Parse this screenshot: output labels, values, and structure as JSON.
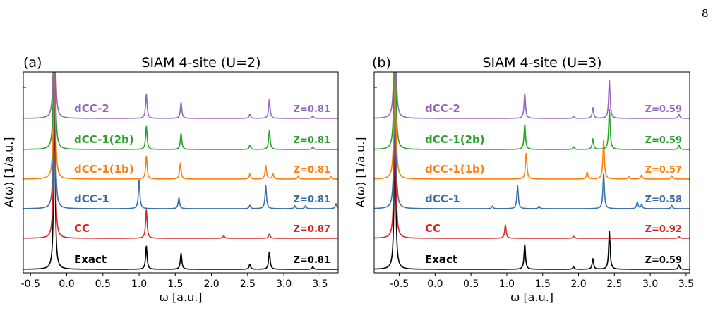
{
  "page_number": "8",
  "x_label": "ω [a.u.]",
  "y_label": "A(ω) [1/a.u.]",
  "colors": {
    "Exact": "#000000",
    "CC": "#d62728",
    "dCC-1": "#3a6fa8",
    "dCC-1(1b)": "#ff7f0e",
    "dCC-1(2b)": "#2ca02c",
    "dCC-2": "#9467bd"
  },
  "chart_data": [
    {
      "type": "line",
      "panel": "(a)",
      "title": "SIAM 4-site (U=2)",
      "xlabel": "ω [a.u.]",
      "ylabel": "A(ω) [1/a.u.]",
      "xlim": [
        -0.6,
        3.75
      ],
      "xticks": [
        "-0.5",
        "0.0",
        "0.5",
        "1.0",
        "1.5",
        "2.0",
        "2.5",
        "3.0",
        "3.5"
      ],
      "xtick_values": [
        -0.5,
        0.0,
        0.5,
        1.0,
        1.5,
        2.0,
        2.5,
        3.0,
        3.5
      ],
      "grid": false,
      "series": [
        {
          "name": "Exact",
          "z": "Z=0.81",
          "peaks": [
            [
              -0.17,
              1.0
            ],
            [
              1.1,
              0.55
            ],
            [
              1.58,
              0.38
            ],
            [
              2.53,
              0.12
            ],
            [
              2.8,
              0.42
            ],
            [
              3.4,
              0.06
            ]
          ]
        },
        {
          "name": "CC",
          "z": "Z=0.87",
          "peaks": [
            [
              -0.17,
              1.0
            ],
            [
              1.1,
              0.68
            ],
            [
              2.17,
              0.06
            ],
            [
              2.8,
              0.1
            ]
          ]
        },
        {
          "name": "dCC-1",
          "z": "Z=0.81",
          "peaks": [
            [
              -0.17,
              1.0
            ],
            [
              1.0,
              0.68
            ],
            [
              1.55,
              0.26
            ],
            [
              2.53,
              0.08
            ],
            [
              2.75,
              0.55
            ],
            [
              3.15,
              0.07
            ],
            [
              3.3,
              0.07
            ],
            [
              3.72,
              0.12
            ]
          ]
        },
        {
          "name": "dCC-1(1b)",
          "z": "Z=0.81",
          "peaks": [
            [
              -0.17,
              1.0
            ],
            [
              1.1,
              0.55
            ],
            [
              1.57,
              0.38
            ],
            [
              2.53,
              0.12
            ],
            [
              2.75,
              0.32
            ],
            [
              2.85,
              0.12
            ],
            [
              3.2,
              0.08
            ],
            [
              3.65,
              0.06
            ]
          ]
        },
        {
          "name": "dCC-1(2b)",
          "z": "Z=0.81",
          "peaks": [
            [
              -0.17,
              1.0
            ],
            [
              1.1,
              0.55
            ],
            [
              1.58,
              0.38
            ],
            [
              2.53,
              0.1
            ],
            [
              2.8,
              0.45
            ],
            [
              3.4,
              0.06
            ]
          ]
        },
        {
          "name": "dCC-2",
          "z": "Z=0.81",
          "peaks": [
            [
              -0.17,
              1.0
            ],
            [
              1.1,
              0.58
            ],
            [
              1.58,
              0.38
            ],
            [
              2.53,
              0.1
            ],
            [
              2.8,
              0.45
            ],
            [
              3.4,
              0.06
            ]
          ]
        }
      ]
    },
    {
      "type": "line",
      "panel": "(b)",
      "title": "SIAM 4-site (U=3)",
      "xlabel": "ω [a.u.]",
      "ylabel": "A(ω) [1/a.u.]",
      "xlim": [
        -0.85,
        3.55
      ],
      "xticks": [
        "-0.5",
        "0.0",
        "0.5",
        "1.0",
        "1.5",
        "2.0",
        "2.5",
        "3.0",
        "3.5"
      ],
      "xtick_values": [
        -0.5,
        0.0,
        0.5,
        1.0,
        1.5,
        2.0,
        2.5,
        3.0,
        3.5
      ],
      "grid": false,
      "series": [
        {
          "name": "Exact",
          "z": "Z=0.59",
          "peaks": [
            [
              -0.56,
              1.0
            ],
            [
              1.25,
              0.6
            ],
            [
              1.93,
              0.06
            ],
            [
              2.2,
              0.25
            ],
            [
              2.43,
              0.9
            ],
            [
              3.4,
              0.1
            ]
          ]
        },
        {
          "name": "CC",
          "z": "Z=0.92",
          "peaks": [
            [
              -0.56,
              1.0
            ],
            [
              0.98,
              0.32
            ],
            [
              1.93,
              0.05
            ],
            [
              3.4,
              0.04
            ]
          ]
        },
        {
          "name": "dCC-1",
          "z": "Z=0.58",
          "peaks": [
            [
              -0.56,
              1.0
            ],
            [
              0.8,
              0.06
            ],
            [
              1.15,
              0.55
            ],
            [
              1.45,
              0.06
            ],
            [
              2.35,
              0.85
            ],
            [
              2.82,
              0.16
            ],
            [
              2.88,
              0.1
            ],
            [
              3.3,
              0.08
            ]
          ]
        },
        {
          "name": "dCC-1(1b)",
          "z": "Z=0.57",
          "peaks": [
            [
              -0.56,
              1.0
            ],
            [
              1.27,
              0.62
            ],
            [
              2.12,
              0.16
            ],
            [
              2.35,
              0.95
            ],
            [
              2.7,
              0.06
            ],
            [
              2.88,
              0.1
            ],
            [
              3.3,
              0.08
            ]
          ]
        },
        {
          "name": "dCC-1(2b)",
          "z": "Z=0.59",
          "peaks": [
            [
              -0.56,
              1.0
            ],
            [
              1.25,
              0.6
            ],
            [
              1.93,
              0.06
            ],
            [
              2.2,
              0.25
            ],
            [
              2.43,
              0.95
            ],
            [
              3.4,
              0.1
            ]
          ]
        },
        {
          "name": "dCC-2",
          "z": "Z=0.59",
          "peaks": [
            [
              -0.56,
              1.0
            ],
            [
              1.25,
              0.6
            ],
            [
              1.93,
              0.05
            ],
            [
              2.2,
              0.25
            ],
            [
              2.43,
              0.9
            ],
            [
              3.4,
              0.1
            ]
          ]
        }
      ]
    }
  ]
}
